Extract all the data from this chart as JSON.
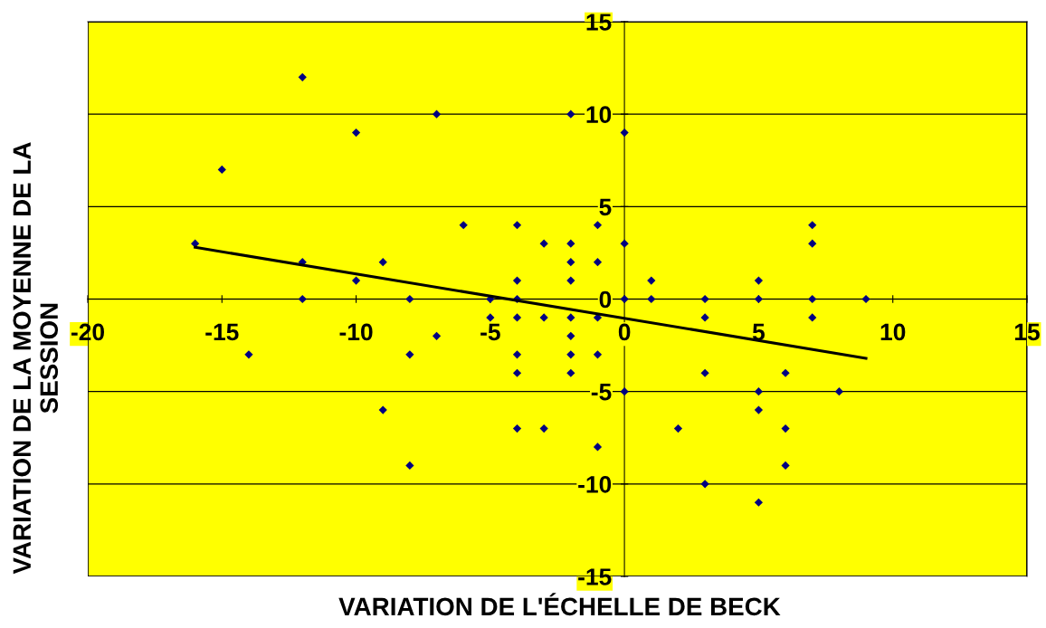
{
  "chart_data": {
    "type": "scatter",
    "xlabel": "VARIATION DE L'ÉCHELLE DE BECK",
    "ylabel": "VARIATION DE LA MOYENNE DE LA SESSION",
    "series": [
      {
        "type": "scatter",
        "color": "#000080",
        "marker": "diamond",
        "x": [
          -16,
          -15,
          -14,
          -12,
          -12,
          -12,
          -10,
          -10,
          -9,
          -9,
          -8,
          -8,
          -8,
          -7,
          -7,
          -6,
          -5,
          -5,
          -4,
          -4,
          -4,
          -4,
          -4,
          -4,
          -4,
          -3,
          -3,
          -3,
          -2,
          -2,
          -2,
          -2,
          -2,
          -2,
          -2,
          -2,
          -1,
          -1,
          -1,
          -1,
          -1,
          0,
          0,
          0,
          0,
          1,
          1,
          2,
          3,
          3,
          3,
          3,
          5,
          5,
          5,
          5,
          5,
          6,
          6,
          6,
          7,
          7,
          7,
          7,
          8,
          9
        ],
        "values": [
          3,
          7,
          -3,
          12,
          2,
          0,
          9,
          1,
          2,
          -6,
          0,
          -3,
          -9,
          10,
          -2,
          4,
          0,
          -1,
          4,
          1,
          0,
          -1,
          -3,
          -4,
          -7,
          3,
          -1,
          -7,
          10,
          3,
          2,
          1,
          -1,
          -2,
          -3,
          -4,
          4,
          2,
          -1,
          -3,
          -8,
          9,
          3,
          0,
          -5,
          1,
          0,
          -7,
          0,
          -1,
          -4,
          -10,
          1,
          0,
          -5,
          -6,
          -11,
          -4,
          -7,
          -9,
          4,
          3,
          0,
          -1,
          -5,
          0
        ]
      },
      {
        "type": "line",
        "color": "#000000",
        "x": [
          -16,
          9
        ],
        "values": [
          2.8,
          -3.2
        ]
      }
    ],
    "xlim": [
      -20,
      15
    ],
    "xticks": [
      -20,
      -15,
      -10,
      -5,
      0,
      5,
      10,
      15
    ],
    "ylim": [
      -15,
      15
    ],
    "yticks": [
      -15,
      -10,
      -5,
      0,
      5,
      10,
      15
    ],
    "grid": "y"
  }
}
